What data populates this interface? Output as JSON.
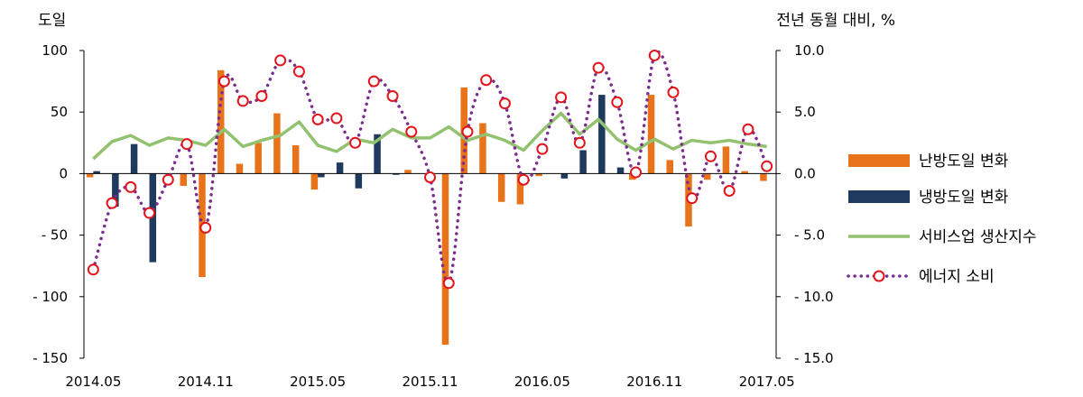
{
  "chart_data": {
    "type": "bar",
    "title": "",
    "y_left_label": "도일",
    "y_right_label": "전년 동월 대비, %",
    "y_left_lim": [
      -150,
      100
    ],
    "y_left_ticks": [
      "100",
      "50",
      "0",
      "- 50",
      "- 100",
      "- 150"
    ],
    "y_left_tick_values": [
      100,
      50,
      0,
      -50,
      -100,
      -150
    ],
    "y_right_lim": [
      -15.0,
      10.0
    ],
    "y_right_ticks": [
      "10.0",
      "5.0",
      "0.0",
      "- 5.0",
      "- 10.0",
      "- 15.0"
    ],
    "y_right_tick_values": [
      10,
      5,
      0,
      -5,
      -10,
      -15
    ],
    "x_tick_labels": [
      "2014.05",
      "2014.11",
      "2015.05",
      "2015.11",
      "2016.05",
      "2016.11",
      "2017.05"
    ],
    "x_tick_indices": [
      0,
      6,
      12,
      18,
      24,
      30,
      36
    ],
    "months": [
      "2014.05",
      "2014.06",
      "2014.07",
      "2014.08",
      "2014.09",
      "2014.10",
      "2014.11",
      "2014.12",
      "2015.01",
      "2015.02",
      "2015.03",
      "2015.04",
      "2015.05",
      "2015.06",
      "2015.07",
      "2015.08",
      "2015.09",
      "2015.10",
      "2015.11",
      "2015.12",
      "2016.01",
      "2016.02",
      "2016.03",
      "2016.04",
      "2016.05",
      "2016.06",
      "2016.07",
      "2016.08",
      "2016.09",
      "2016.10",
      "2016.11",
      "2016.12",
      "2017.01",
      "2017.02",
      "2017.03",
      "2017.04",
      "2017.05"
    ],
    "legend_position": "right",
    "series": [
      {
        "name": "난방도일 변화",
        "type": "bar",
        "axis": "left",
        "color": "#E8731A",
        "values": [
          -3,
          0,
          0,
          0,
          0,
          -10,
          -84,
          84,
          8,
          25,
          49,
          23,
          -13,
          0,
          0,
          0,
          0,
          3,
          0,
          -139,
          70,
          41,
          -23,
          -25,
          -2,
          0,
          0,
          0,
          0,
          -5,
          64,
          11,
          -43,
          -5,
          22,
          2,
          -6
        ]
      },
      {
        "name": "냉방도일 변화",
        "type": "bar",
        "axis": "left",
        "color": "#1F3A5F",
        "values": [
          2,
          -27,
          24,
          -72,
          0,
          0,
          0,
          0,
          0,
          0,
          0,
          0,
          -3,
          9,
          -12,
          32,
          -1,
          0,
          0,
          0,
          0,
          0,
          0,
          0,
          0,
          -4,
          19,
          64,
          5,
          0,
          0,
          0,
          0,
          0,
          0,
          0,
          0
        ]
      },
      {
        "name": "서비스업 생산지수",
        "type": "line",
        "axis": "right",
        "color": "#92C26F",
        "values": [
          1.2,
          2.6,
          3.1,
          2.3,
          2.9,
          2.7,
          2.3,
          3.6,
          2.2,
          2.7,
          3.1,
          4.2,
          2.3,
          1.8,
          2.8,
          2.5,
          3.6,
          2.9,
          2.9,
          3.8,
          2.7,
          3.2,
          2.7,
          1.9,
          3.5,
          4.9,
          3.2,
          4.4,
          2.8,
          1.9,
          2.8,
          2.0,
          2.7,
          2.5,
          2.7,
          2.4,
          2.2
        ]
      },
      {
        "name": "에너지 소비",
        "type": "line",
        "axis": "right",
        "color": "#7B2D8E",
        "marker_color": "#E3141B",
        "values": [
          -7.8,
          -2.4,
          -1.1,
          -3.2,
          -0.5,
          2.4,
          -4.4,
          7.5,
          5.9,
          6.3,
          9.2,
          8.3,
          4.4,
          4.5,
          2.5,
          7.5,
          6.3,
          3.4,
          -0.3,
          -8.9,
          3.4,
          7.6,
          5.7,
          -0.5,
          2.0,
          6.2,
          2.5,
          8.6,
          5.8,
          0.1,
          9.6,
          6.6,
          -2.0,
          1.4,
          -1.4,
          3.6,
          0.6
        ]
      }
    ]
  }
}
